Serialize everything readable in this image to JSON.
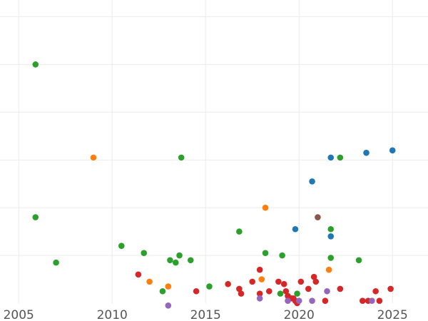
{
  "chart_data": {
    "type": "scatter",
    "title": "",
    "xlabel": "",
    "ylabel": "",
    "xlim": [
      2004.0,
      2026.9
    ],
    "ylim": [
      0,
      6.35
    ],
    "grid": true,
    "x_ticks": [
      "2005",
      "2010",
      "2015",
      "2020",
      "2025"
    ],
    "y_ticks": [
      1,
      2,
      3,
      4,
      5,
      6
    ],
    "series": [
      {
        "color": "#1f77b4",
        "points": [
          {
            "x": 2019.8,
            "y": 1.55
          },
          {
            "x": 2020.7,
            "y": 2.55
          },
          {
            "x": 2021.7,
            "y": 3.05
          },
          {
            "x": 2021.7,
            "y": 1.4
          },
          {
            "x": 2023.6,
            "y": 3.15
          },
          {
            "x": 2025.0,
            "y": 3.2
          }
        ]
      },
      {
        "color": "#ff7f0e",
        "points": [
          {
            "x": 2009.0,
            "y": 3.05
          },
          {
            "x": 2012.0,
            "y": 0.45
          },
          {
            "x": 2013.0,
            "y": 0.35
          },
          {
            "x": 2018.2,
            "y": 2.0
          },
          {
            "x": 2018.0,
            "y": 0.5
          },
          {
            "x": 2021.6,
            "y": 0.7
          }
        ]
      },
      {
        "color": "#2ca02c",
        "points": [
          {
            "x": 2005.9,
            "y": 5.0
          },
          {
            "x": 2005.9,
            "y": 1.8
          },
          {
            "x": 2007.0,
            "y": 0.85
          },
          {
            "x": 2010.5,
            "y": 1.2
          },
          {
            "x": 2011.7,
            "y": 1.05
          },
          {
            "x": 2012.7,
            "y": 0.25
          },
          {
            "x": 2013.1,
            "y": 0.9
          },
          {
            "x": 2013.4,
            "y": 0.85
          },
          {
            "x": 2013.6,
            "y": 1.0
          },
          {
            "x": 2013.7,
            "y": 3.05
          },
          {
            "x": 2014.2,
            "y": 0.9
          },
          {
            "x": 2015.2,
            "y": 0.35
          },
          {
            "x": 2016.8,
            "y": 1.5
          },
          {
            "x": 2018.2,
            "y": 1.05
          },
          {
            "x": 2019.0,
            "y": 0.2
          },
          {
            "x": 2019.1,
            "y": 1.0
          },
          {
            "x": 2019.9,
            "y": 0.2
          },
          {
            "x": 2021.7,
            "y": 1.55
          },
          {
            "x": 2021.7,
            "y": 0.95
          },
          {
            "x": 2022.2,
            "y": 3.05
          },
          {
            "x": 2023.2,
            "y": 0.9
          }
        ]
      },
      {
        "color": "#d62728",
        "points": [
          {
            "x": 2011.4,
            "y": 0.6
          },
          {
            "x": 2014.5,
            "y": 0.25
          },
          {
            "x": 2016.2,
            "y": 0.4
          },
          {
            "x": 2016.8,
            "y": 0.3
          },
          {
            "x": 2016.9,
            "y": 0.2
          },
          {
            "x": 2017.5,
            "y": 0.45
          },
          {
            "x": 2017.9,
            "y": 0.7
          },
          {
            "x": 2017.9,
            "y": 0.2
          },
          {
            "x": 2018.4,
            "y": 0.25
          },
          {
            "x": 2018.9,
            "y": 0.45
          },
          {
            "x": 2019.2,
            "y": 0.4
          },
          {
            "x": 2019.3,
            "y": 0.25
          },
          {
            "x": 2019.4,
            "y": 0.15
          },
          {
            "x": 2019.6,
            "y": 0.1
          },
          {
            "x": 2019.7,
            "y": 0.1
          },
          {
            "x": 2019.8,
            "y": 0.05
          },
          {
            "x": 2019.9,
            "y": 0.0
          },
          {
            "x": 2020.1,
            "y": 0.45
          },
          {
            "x": 2020.5,
            "y": 0.3
          },
          {
            "x": 2020.8,
            "y": 0.55
          },
          {
            "x": 2020.9,
            "y": 0.45
          },
          {
            "x": 2021.4,
            "y": 0.05
          },
          {
            "x": 2022.2,
            "y": 0.3
          },
          {
            "x": 2023.4,
            "y": 0.05
          },
          {
            "x": 2023.7,
            "y": 0.05
          },
          {
            "x": 2024.1,
            "y": 0.25
          },
          {
            "x": 2024.3,
            "y": 0.05
          },
          {
            "x": 2024.9,
            "y": 0.3
          }
        ]
      },
      {
        "color": "#9467bd",
        "points": [
          {
            "x": 2013.0,
            "y": -0.05
          },
          {
            "x": 2017.9,
            "y": 0.1
          },
          {
            "x": 2019.4,
            "y": 0.05
          },
          {
            "x": 2020.0,
            "y": 0.05
          },
          {
            "x": 2020.7,
            "y": 0.05
          },
          {
            "x": 2021.5,
            "y": 0.25
          },
          {
            "x": 2023.9,
            "y": 0.05
          }
        ]
      },
      {
        "color": "#8c564b",
        "points": [
          {
            "x": 2021.0,
            "y": 1.8
          }
        ]
      }
    ]
  }
}
